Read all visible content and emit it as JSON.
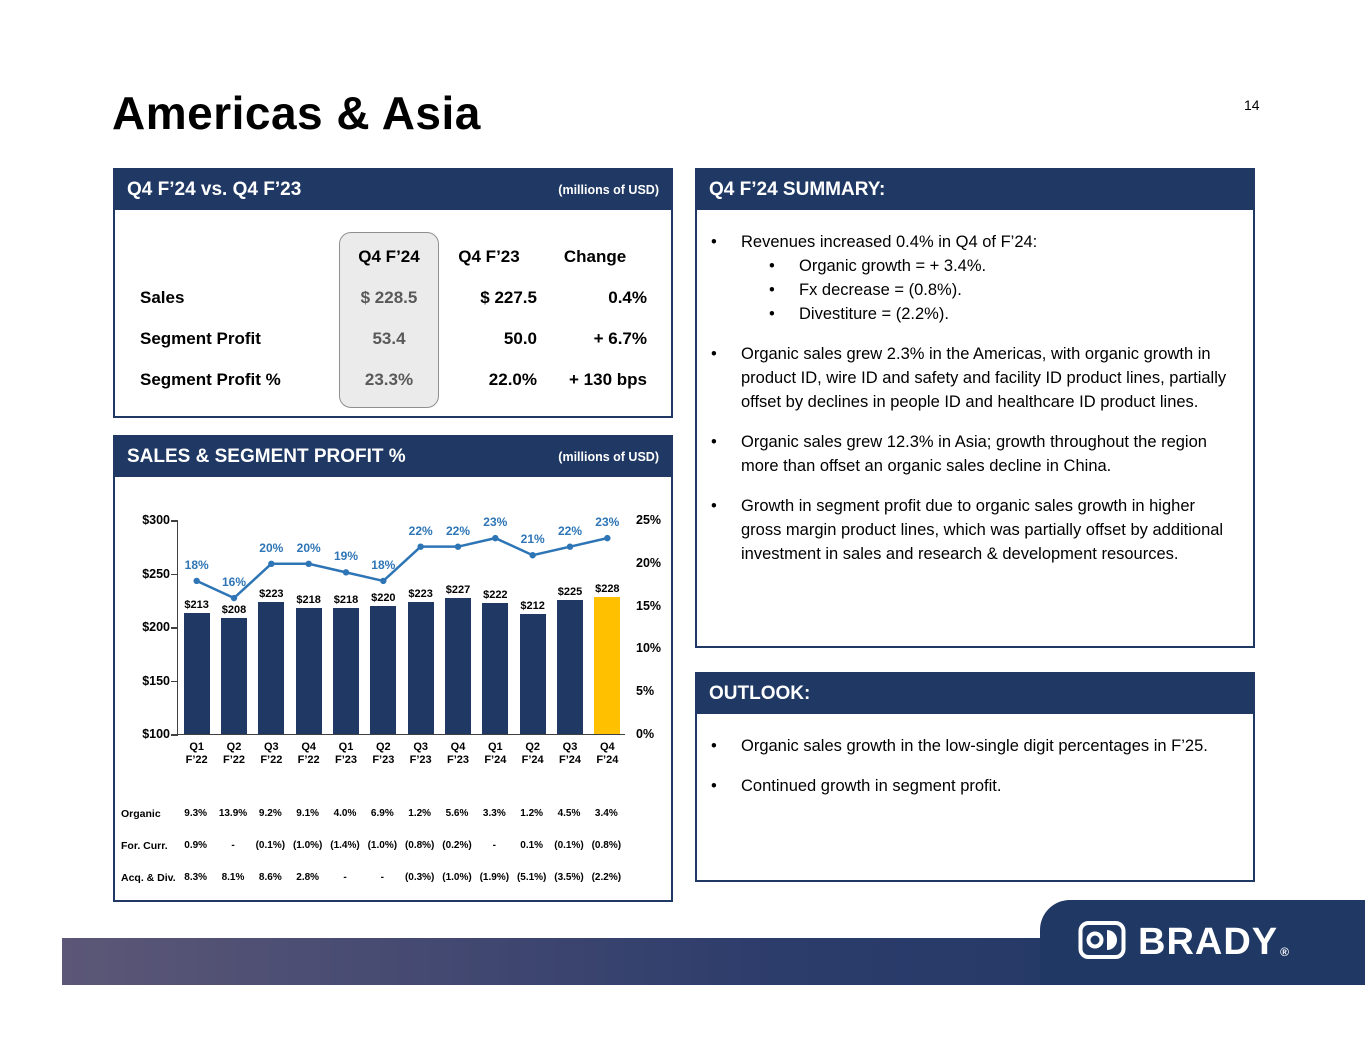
{
  "page": {
    "title": "Americas & Asia",
    "number": "14"
  },
  "comparison": {
    "header": "Q4 F’24 vs. Q4 F’23",
    "units": "(millions of USD)",
    "columns": [
      "Q4 F’24",
      "Q4 F’23",
      "Change"
    ],
    "rows": [
      {
        "label": "Sales",
        "current": "$ 228.5",
        "prior": "$ 227.5",
        "change": "0.4%"
      },
      {
        "label": "Segment Profit",
        "current": "53.4",
        "prior": "50.0",
        "change": "+ 6.7%"
      },
      {
        "label": "Segment Profit %",
        "current": "23.3%",
        "prior": "22.0%",
        "change": "+ 130 bps"
      }
    ]
  },
  "chart_box": {
    "header": "SALES & SEGMENT PROFIT %",
    "units": "(millions of USD)"
  },
  "chart_data": {
    "type": "bar",
    "title": "SALES & SEGMENT PROFIT %",
    "units": "millions of USD",
    "categories": [
      "Q1 F’22",
      "Q2 F’22",
      "Q3 F’22",
      "Q4 F’22",
      "Q1 F’23",
      "Q2 F’23",
      "Q3 F’23",
      "Q4 F’23",
      "Q1 F’24",
      "Q2 F’24",
      "Q3 F’24",
      "Q4 F’24"
    ],
    "series": [
      {
        "name": "Sales",
        "type": "bar",
        "values": [
          213,
          208,
          223,
          218,
          218,
          220,
          223,
          227,
          222,
          212,
          225,
          228
        ],
        "labels": [
          "$213",
          "$208",
          "$223",
          "$218",
          "$218",
          "$220",
          "$223",
          "$227",
          "$222",
          "$212",
          "$225",
          "$228"
        ]
      },
      {
        "name": "Segment Profit %",
        "type": "line",
        "values": [
          18,
          16,
          20,
          20,
          19,
          18,
          22,
          22,
          23,
          21,
          22,
          23
        ],
        "labels": [
          "18%",
          "16%",
          "20%",
          "20%",
          "19%",
          "18%",
          "22%",
          "22%",
          "23%",
          "21%",
          "22%",
          "23%"
        ]
      }
    ],
    "left_axis": {
      "min": 100,
      "max": 300,
      "tick_values": [
        300,
        250,
        200,
        150,
        100
      ],
      "ticks": [
        "$300",
        "$250",
        "$200",
        "$150",
        "$100"
      ]
    },
    "right_axis": {
      "min": 0,
      "max": 25,
      "tick_values": [
        25,
        20,
        15,
        10,
        5,
        0
      ],
      "ticks": [
        "25%",
        "20%",
        "15%",
        "10%",
        "5%",
        "0%"
      ]
    },
    "bar_color": "#1F3864",
    "highlight_bar_index": 11,
    "highlight_color": "#FFC000",
    "line_color": "#2E75B6"
  },
  "growth_table": {
    "rows": [
      {
        "label": "Organic",
        "values": [
          "9.3%",
          "13.9%",
          "9.2%",
          "9.1%",
          "4.0%",
          "6.9%",
          "1.2%",
          "5.6%",
          "3.3%",
          "1.2%",
          "4.5%",
          "3.4%"
        ]
      },
      {
        "label": "For. Curr.",
        "values": [
          "0.9%",
          "-",
          "(0.1%)",
          "(1.0%)",
          "(1.4%)",
          "(1.0%)",
          "(0.8%)",
          "(0.2%)",
          "-",
          "0.1%",
          "(0.1%)",
          "(0.8%)"
        ]
      },
      {
        "label": "Acq. & Div.",
        "values": [
          "8.3%",
          "8.1%",
          "8.6%",
          "2.8%",
          "-",
          "-",
          "(0.3%)",
          "(1.0%)",
          "(1.9%)",
          "(5.1%)",
          "(3.5%)",
          "(2.2%)"
        ]
      }
    ]
  },
  "summary": {
    "header": "Q4 F’24 SUMMARY:",
    "bullets": [
      {
        "text": "Revenues increased 0.4% in Q4 of F’24:",
        "sub": [
          "Organic growth = + 3.4%.",
          "Fx decrease = (0.8%).",
          "Divestiture = (2.2%)."
        ]
      },
      {
        "text": "Organic sales grew 2.3% in the Americas, with organic growth in product ID, wire ID and safety and facility ID product lines, partially offset by declines in people ID and healthcare ID product lines."
      },
      {
        "text": "Organic sales grew 12.3% in Asia; growth throughout the region more than offset an organic sales decline in China."
      },
      {
        "text": "Growth in segment profit due to organic sales growth in higher gross margin product lines, which was partially offset by additional investment in sales and research & development resources."
      }
    ]
  },
  "outlook": {
    "header": "OUTLOOK:",
    "bullets": [
      {
        "text": "Organic sales growth in the low-single digit percentages in F’25."
      },
      {
        "text": "Continued growth in segment profit."
      }
    ]
  },
  "footer": {
    "brand": "BRADY",
    "registered": "®"
  }
}
